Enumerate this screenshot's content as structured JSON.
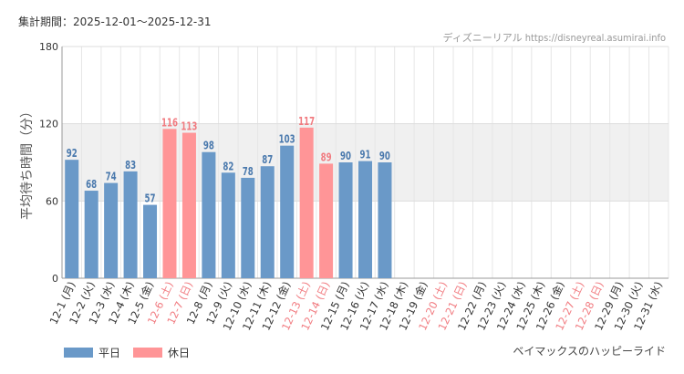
{
  "header": {
    "period_label": "集計期間：2025-12-01～2025-12-31",
    "source": "ディズニーリアル https://disneyreal.asumirai.info"
  },
  "footer": {
    "attraction": "ベイマックスのハッピーライド"
  },
  "legend": {
    "weekday": "平日",
    "holiday": "休日"
  },
  "colors": {
    "weekday": "#6a99c8",
    "holiday": "#ff9597",
    "weekday_label": "#4a79ad",
    "holiday_label": "#f17b80",
    "band": "#f0f0f0"
  },
  "chart_data": {
    "type": "bar",
    "title": "",
    "ylabel": "平均待ち時間（分）",
    "xlabel": "",
    "ylim": [
      0,
      180
    ],
    "yticks": [
      0,
      60,
      120,
      180
    ],
    "grid": true,
    "categories": [
      "12-1 (月)",
      "12-2 (火)",
      "12-3 (水)",
      "12-4 (木)",
      "12-5 (金)",
      "12-6 (土)",
      "12-7 (日)",
      "12-8 (月)",
      "12-9 (火)",
      "12-10 (水)",
      "12-11 (木)",
      "12-12 (金)",
      "12-13 (土)",
      "12-14 (日)",
      "12-15 (月)",
      "12-16 (火)",
      "12-17 (水)",
      "12-18 (木)",
      "12-19 (金)",
      "12-20 (土)",
      "12-21 (日)",
      "12-22 (月)",
      "12-23 (火)",
      "12-24 (水)",
      "12-25 (木)",
      "12-26 (金)",
      "12-27 (土)",
      "12-28 (日)",
      "12-29 (月)",
      "12-30 (火)",
      "12-31 (水)"
    ],
    "holiday": [
      false,
      false,
      false,
      false,
      false,
      true,
      true,
      false,
      false,
      false,
      false,
      false,
      true,
      true,
      false,
      false,
      false,
      false,
      false,
      true,
      true,
      false,
      false,
      false,
      false,
      false,
      true,
      true,
      false,
      false,
      false
    ],
    "values": [
      92,
      68,
      74,
      83,
      57,
      116,
      113,
      98,
      82,
      78,
      87,
      103,
      117,
      89,
      90,
      91,
      90,
      null,
      null,
      null,
      null,
      null,
      null,
      null,
      null,
      null,
      null,
      null,
      null,
      null,
      null
    ]
  }
}
